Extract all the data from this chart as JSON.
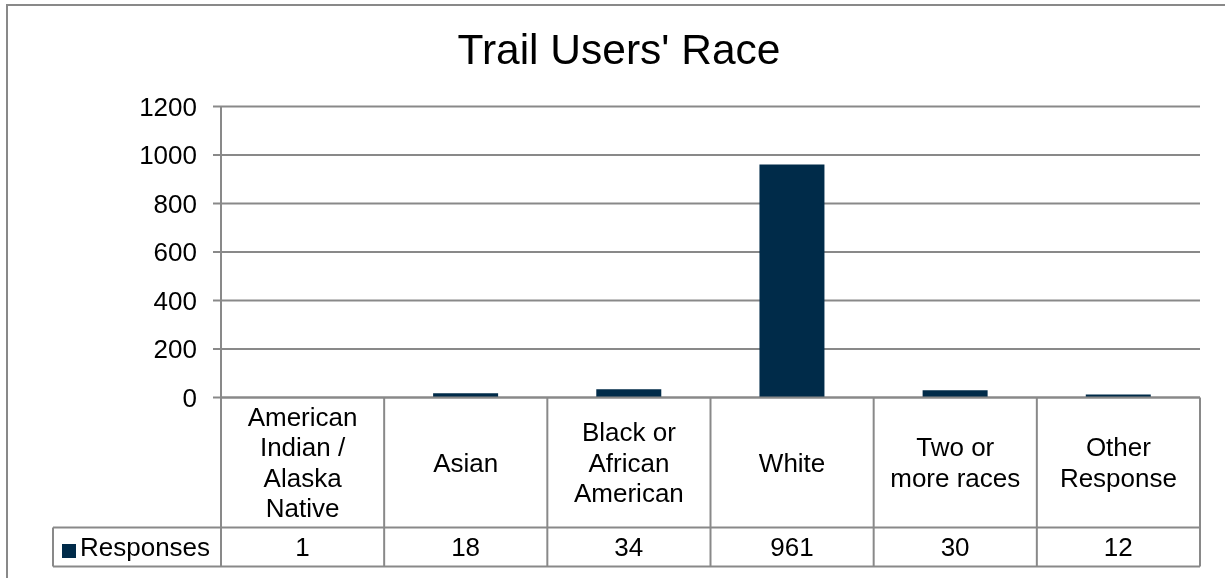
{
  "chart_data": {
    "type": "bar",
    "title": "Trail Users' Race",
    "categories": [
      "American Indian / Alaska Native",
      "Asian",
      "Black or African American",
      "White",
      "Two or more races",
      "Other Response"
    ],
    "series": [
      {
        "name": "Responses",
        "color": "#002b49",
        "values": [
          1,
          18,
          34,
          961,
          30,
          12
        ]
      }
    ],
    "ylim": [
      0,
      1200
    ],
    "yticks": [
      0,
      200,
      400,
      600,
      800,
      1000,
      1200
    ],
    "grid": "y",
    "legend": "bottom left",
    "data_labels": true
  }
}
